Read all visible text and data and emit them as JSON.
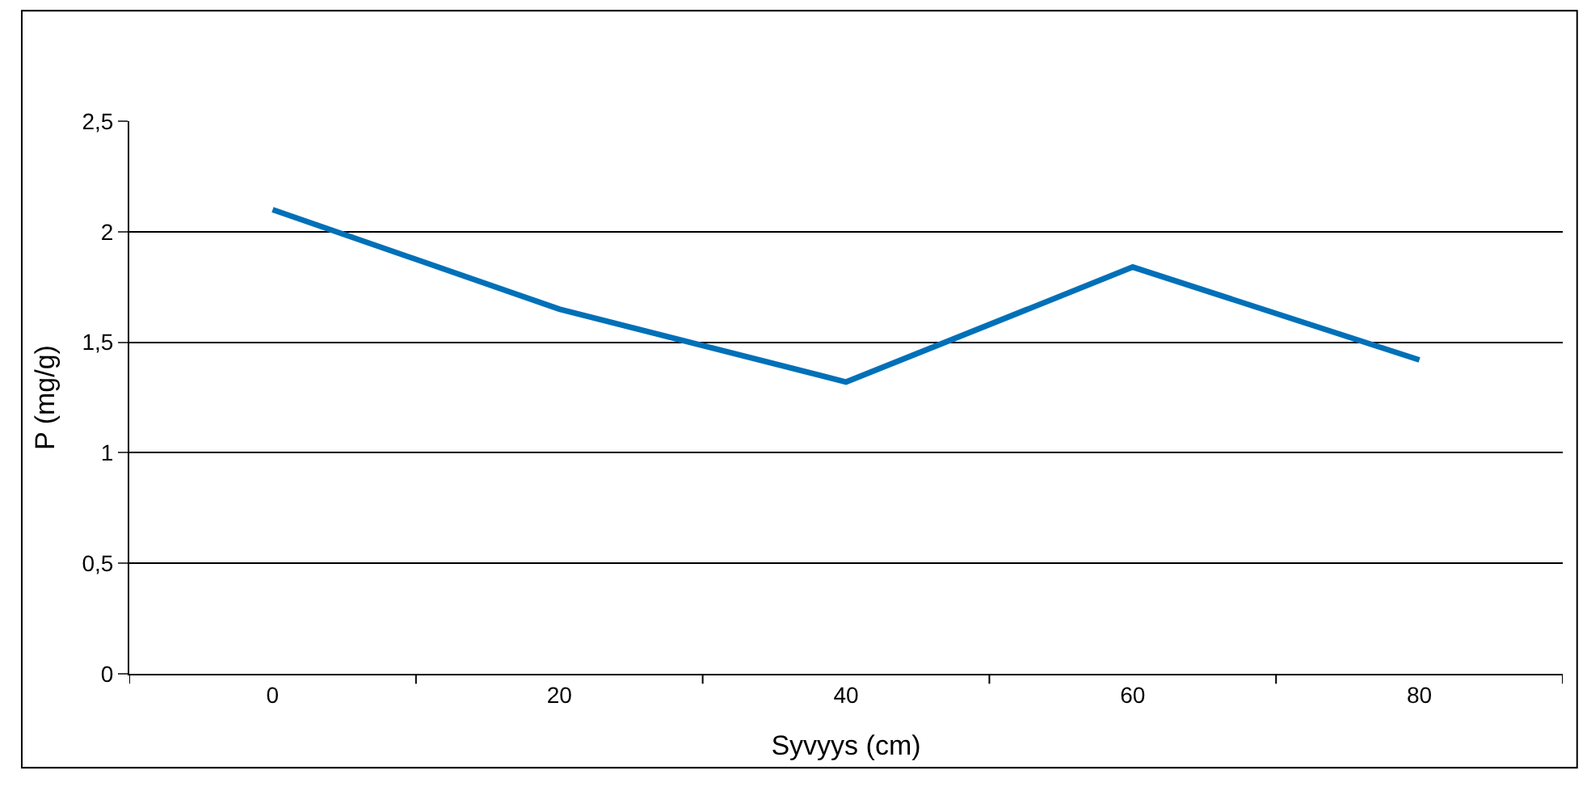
{
  "chart_data": {
    "type": "line",
    "xlabel": "Syvyys (cm)",
    "ylabel": "P (mg/g)",
    "categories": [
      "0",
      "20",
      "40",
      "60",
      "80"
    ],
    "series": [
      {
        "color": "#0070b8",
        "values": [
          2.1,
          1.65,
          1.32,
          1.84,
          1.42
        ]
      }
    ],
    "ylim": [
      0,
      2.5
    ],
    "yticks": [
      {
        "value": 0,
        "label": "0"
      },
      {
        "value": 0.5,
        "label": "0,5"
      },
      {
        "value": 1,
        "label": "1"
      },
      {
        "value": 1.5,
        "label": "1,5"
      },
      {
        "value": 2,
        "label": "2"
      },
      {
        "value": 2.5,
        "label": "2,5"
      }
    ],
    "grid": "y",
    "legend": false,
    "marker": "none",
    "line_style": "solid"
  }
}
